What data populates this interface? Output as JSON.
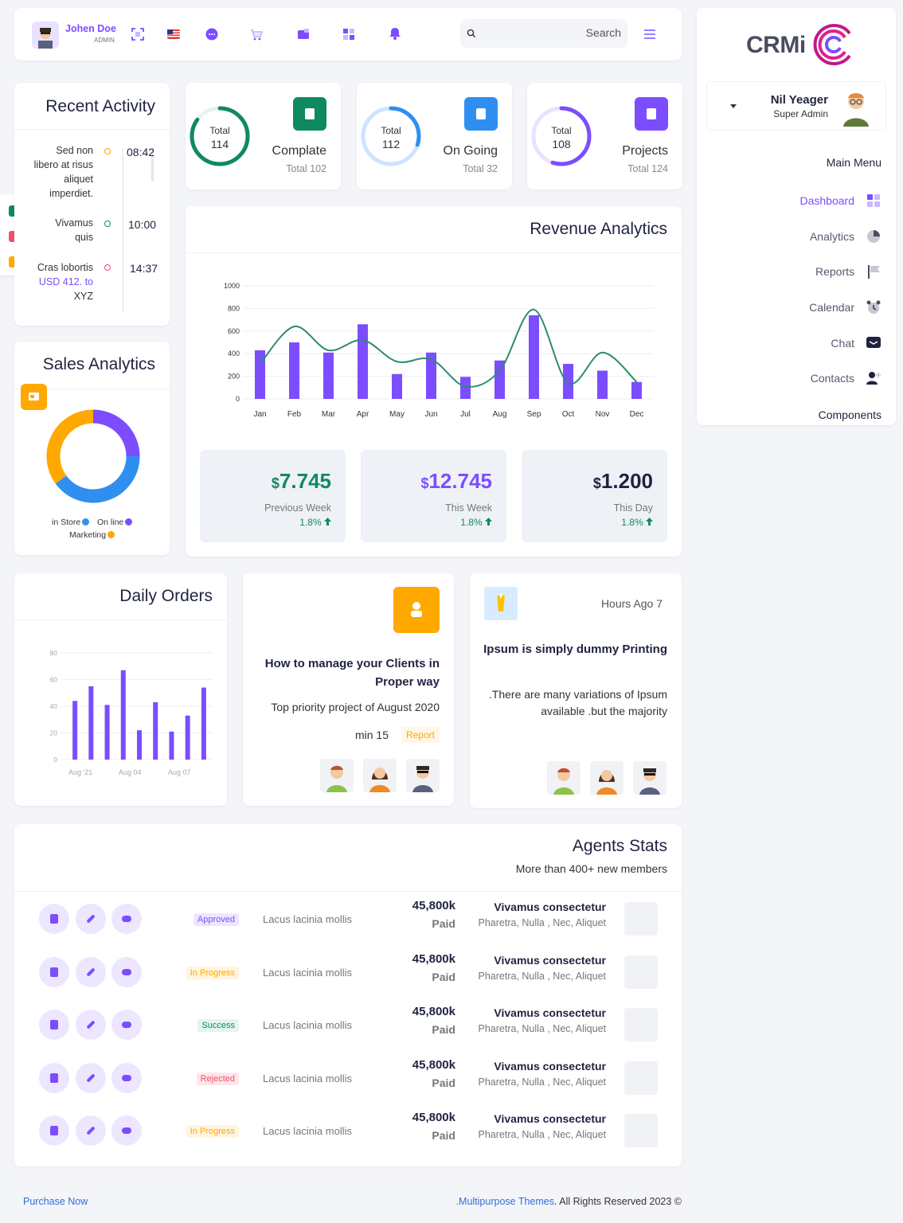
{
  "topbar": {
    "user_name": "Johen Doe",
    "user_role": "ADMIN",
    "icons": [
      "expand-icon",
      "flag-us-icon",
      "chat-bubble-icon",
      "cart-icon",
      "folder-icon",
      "layout-icon",
      "bell-icon"
    ],
    "search_placeholder": "Search"
  },
  "sidebar": {
    "logo_text": "CRMi",
    "profile_name": "Nil Yeager",
    "profile_role": "Super Admin",
    "section_label": "Main Menu",
    "items": [
      {
        "label": "Dashboard",
        "icon": "grid-icon",
        "active": true
      },
      {
        "label": "Analytics",
        "icon": "pie-icon"
      },
      {
        "label": "Reports",
        "icon": "flag-icon"
      },
      {
        "label": "Calendar",
        "icon": "alarm-icon"
      },
      {
        "label": "Chat",
        "icon": "chat-icon"
      },
      {
        "label": "Contacts",
        "icon": "add-user-icon"
      }
    ],
    "components_label": "Components"
  },
  "recent_activity": {
    "title": "Recent Activity",
    "items": [
      {
        "lines": [
          "Sed non",
          "libero at risus",
          "aliquet",
          "imperdiet."
        ],
        "time": "08:42",
        "color": "#ffa800"
      },
      {
        "lines": [
          "Vivamus",
          "quis"
        ],
        "time": "10:00",
        "color": "#0f8a5f"
      },
      {
        "lines": [
          "Cras lobortis",
          "USD 412. to",
          "XYZ"
        ],
        "time": "14:37",
        "color": "#f0506e"
      }
    ]
  },
  "stats": [
    {
      "ring_label": "Total",
      "ring_value": "114",
      "name": "Complate",
      "total": "Total 102",
      "color": "#0f8a5f",
      "fraction": 0.85,
      "track": "#e7f3ee",
      "tile_color": "#0f8a5f",
      "tile_icon": "trophy-icon"
    },
    {
      "ring_label": "Total",
      "ring_value": "112",
      "name": "On Going",
      "total": "Total 32",
      "color": "#2f8ff0",
      "fraction": 0.3,
      "track": "#cfe3ff",
      "tile_color": "#2f8ff0",
      "tile_icon": "gears-icon"
    },
    {
      "ring_label": "Total",
      "ring_value": "108",
      "name": "Projects",
      "total": "Total 124",
      "color": "#7c4dff",
      "fraction": 0.55,
      "track": "#e9e2ff",
      "tile_color": "#7c4dff",
      "tile_icon": "document-icon"
    }
  ],
  "revenue": {
    "title": "Revenue Analytics",
    "kpis": [
      {
        "currency": "$",
        "amount": "7.745",
        "period": "Previous Week",
        "pct": "1.8%",
        "color": "#0f8a5f"
      },
      {
        "currency": "$",
        "amount": "12.745",
        "period": "This Week",
        "pct": "1.8%",
        "color": "#7c4dff"
      },
      {
        "currency": "$",
        "amount": "1.200",
        "period": "This Day",
        "pct": "1.8%",
        "color": "#1f2340"
      }
    ]
  },
  "sales": {
    "title": "Sales Analytics",
    "legend": [
      "in Store",
      "On line",
      "Marketing"
    ]
  },
  "daily_orders": {
    "title": "Daily Orders"
  },
  "chart_data": [
    {
      "type": "bar",
      "title": "Revenue Analytics",
      "categories": [
        "Jan",
        "Feb",
        "Mar",
        "Apr",
        "May",
        "Jun",
        "Jul",
        "Aug",
        "Sep",
        "Oct",
        "Nov",
        "Dec"
      ],
      "ylim": [
        0,
        1000
      ],
      "yticks": [
        0,
        200,
        400,
        600,
        800,
        1000
      ],
      "series": [
        {
          "type": "bar",
          "values": [
            430,
            500,
            410,
            660,
            220,
            410,
            195,
            340,
            740,
            310,
            250,
            150
          ],
          "color": "#7c4dff"
        },
        {
          "type": "line",
          "values": [
            310,
            640,
            430,
            520,
            330,
            350,
            110,
            250,
            790,
            140,
            410,
            150
          ],
          "color": "#2e8b6e"
        }
      ]
    },
    {
      "type": "pie",
      "title": "Sales Analytics",
      "labels": [
        "in Store",
        "On line",
        "Marketing"
      ],
      "values": [
        40,
        25,
        35
      ],
      "colors": [
        "#2f8ff0",
        "#7c4dff",
        "#ffa800"
      ]
    },
    {
      "type": "bar",
      "title": "Daily Orders",
      "ylim": [
        0,
        80
      ],
      "yticks": [
        0,
        20,
        40,
        60,
        80
      ],
      "xticks": [
        "Aug '21",
        "Aug 04",
        "Aug 07"
      ],
      "values": [
        44,
        55,
        41,
        67,
        22,
        43,
        21,
        33,
        54
      ],
      "color": "#7c4dff"
    }
  ],
  "manage": {
    "title": "How to manage your Clients in Proper way",
    "subtitle": "Top priority project of August 2020",
    "min": "min 15",
    "badge": "Report"
  },
  "ipsum": {
    "time": "Hours Ago 7",
    "title": "Ipsum is simply dummy Printing",
    "text": ".There are many variations of Ipsum available .but the majority"
  },
  "agents": {
    "title": "Agents Stats",
    "subtitle": "More than 400+ new members",
    "rows": [
      {
        "status": "Approved",
        "status_color": "#7c4dff",
        "status_bg": "#ece6ff",
        "desc": "Lacus lacinia mollis",
        "amount": "45,800k",
        "paid": "Paid",
        "name": "Vivamus consectetur",
        "tags": "Pharetra, Nulla , Nec, Aliquet",
        "icon": "paint-icon"
      },
      {
        "status": "In Progress",
        "status_color": "#ffa800",
        "status_bg": "#fff4e0",
        "desc": "Lacus lacinia mollis",
        "amount": "45,800k",
        "paid": "Paid",
        "name": "Vivamus consectetur",
        "tags": "Pharetra, Nulla , Nec, Aliquet",
        "icon": "gear-icon"
      },
      {
        "status": "Success",
        "status_color": "#0f8a5f",
        "status_bg": "#e3f5ec",
        "desc": "Lacus lacinia mollis",
        "amount": "45,800k",
        "paid": "Paid",
        "name": "Vivamus consectetur",
        "tags": "Pharetra, Nulla , Nec, Aliquet",
        "icon": "gear-check-icon"
      },
      {
        "status": "Rejected",
        "status_color": "#f0506e",
        "status_bg": "#fde6ea",
        "desc": "Lacus lacinia mollis",
        "amount": "45,800k",
        "paid": "Paid",
        "name": "Vivamus consectetur",
        "tags": "Pharetra, Nulla , Nec, Aliquet",
        "icon": "palette-icon"
      },
      {
        "status": "In Progress",
        "status_color": "#ffa800",
        "status_bg": "#fff4e0",
        "desc": "Lacus lacinia mollis",
        "amount": "45,800k",
        "paid": "Paid",
        "name": "Vivamus consectetur",
        "tags": "Pharetra, Nulla , Nec, Aliquet",
        "icon": "trophy-icon"
      }
    ]
  },
  "footer": {
    "purchase": "Purchase Now",
    "copyright_link": ".Multipurpose Themes",
    "copyright_rest": ". All Rights Reserved 2023 ©"
  }
}
